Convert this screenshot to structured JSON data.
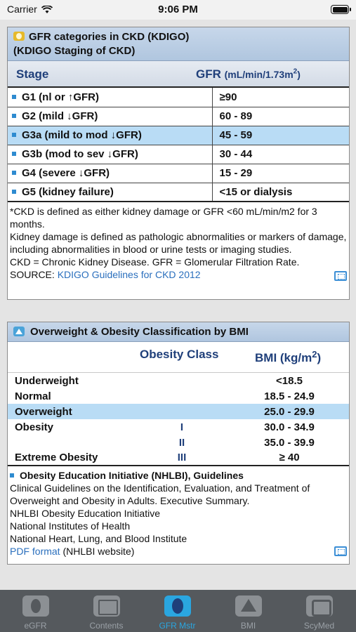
{
  "status": {
    "carrier": "Carrier",
    "time": "9:06 PM"
  },
  "ckd": {
    "title_line1": "GFR categories in CKD (KDIGO)",
    "title_line2": "(KDIGO Staging of CKD)",
    "col_stage": "Stage",
    "col_gfr": "GFR",
    "col_gfr_unit": "(mL/min/1.73m",
    "col_gfr_unit_sup": "2",
    "col_gfr_unit_end": ")",
    "rows": [
      {
        "stage": "G1 (nl or ↑GFR)",
        "gfr": "≥90",
        "highlight": false
      },
      {
        "stage": "G2 (mild ↓GFR)",
        "gfr": "60 - 89",
        "highlight": false
      },
      {
        "stage": "G3a (mild to mod ↓GFR)",
        "gfr": "45 - 59",
        "highlight": true
      },
      {
        "stage": "G3b (mod to sev ↓GFR)",
        "gfr": "30 - 44",
        "highlight": false
      },
      {
        "stage": "G4 (severe ↓GFR)",
        "gfr": "15 - 29",
        "highlight": false
      },
      {
        "stage": "G5 (kidney failure)",
        "gfr": "<15 or dialysis",
        "highlight": false
      }
    ],
    "note1": "*CKD is defined as either kidney damage or GFR <60 mL/min/m2 for 3 months.",
    "note2": "Kidney damage is defined as pathologic abnormalities or markers of damage, including abnormalities in blood or urine tests or imaging studies.",
    "note3": "CKD = Chronic Kidney Disease. GFR = Glomerular Filtration Rate.",
    "source_label": "SOURCE:",
    "source_link": "KDIGO Guidelines for CKD 2012"
  },
  "bmi": {
    "title": "Overweight & Obesity Classification by BMI",
    "col_class": "Obesity Class",
    "col_bmi": "BMI (kg/m",
    "col_bmi_sup": "2",
    "col_bmi_end": ")",
    "rows": [
      {
        "name": "Underweight",
        "cls": "",
        "bmi": "<18.5",
        "highlight": false
      },
      {
        "name": "Normal",
        "cls": "",
        "bmi": "18.5 - 24.9",
        "highlight": false
      },
      {
        "name": "Overweight",
        "cls": "",
        "bmi": "25.0 - 29.9",
        "highlight": true
      },
      {
        "name": "Obesity",
        "cls": "I",
        "bmi": "30.0 - 34.9",
        "highlight": false
      },
      {
        "name": "",
        "cls": "II",
        "bmi": "35.0 - 39.9",
        "highlight": false
      },
      {
        "name": "Extreme Obesity",
        "cls": "III",
        "bmi": "≥ 40",
        "highlight": false
      }
    ],
    "ref_title": "Obesity Education Initiative (NHLBI), Guidelines",
    "ref_line1": "Clinical Guidelines on the Identification, Evaluation, and Treatment of Overweight and Obesity in Adults. Executive Summary.",
    "ref_line2": "NHLBI Obesity Education Initiative",
    "ref_line3": "National Institutes of Health",
    "ref_line4": "National Heart, Lung, and Blood Institute",
    "ref_link": "PDF format",
    "ref_link_suffix": "(NHLBI website)"
  },
  "tabs": [
    {
      "label": "eGFR",
      "icon": "egfr-icon"
    },
    {
      "label": "Contents",
      "icon": "contents-icon"
    },
    {
      "label": "GFR Mstr",
      "icon": "kidney-icon",
      "active": true
    },
    {
      "label": "BMI",
      "icon": "bmi-icon"
    },
    {
      "label": "ScyMed",
      "icon": "scymed-icon"
    }
  ],
  "colors": {
    "accent": "#2aa6e0",
    "highlight": "#b9dcf5",
    "header": "#1f3f7a",
    "tabbar": "#55595d"
  }
}
